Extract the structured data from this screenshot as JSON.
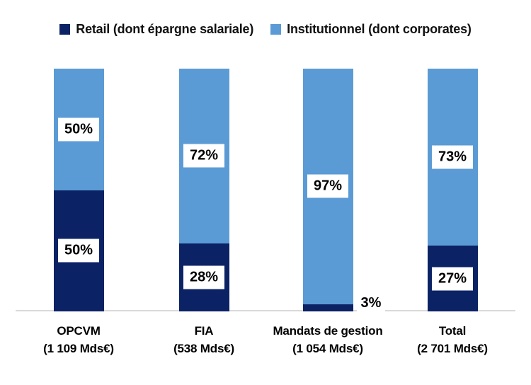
{
  "chart_data": {
    "type": "bar",
    "subtype": "stacked-100",
    "title": "",
    "categories": [
      "OPCVM",
      "FIA",
      "Mandats de gestion",
      "Total"
    ],
    "category_amounts": [
      "(1 109 Mds€)",
      "(538 Mds€)",
      "(1 054 Mds€)",
      "(2 701 Mds€)"
    ],
    "series": [
      {
        "name": "Retail (dont épargne salariale)",
        "color": "#0b2265",
        "values": [
          50,
          28,
          3,
          27
        ]
      },
      {
        "name": "Institutionnel (dont corporates)",
        "color": "#5b9bd5",
        "values": [
          50,
          72,
          97,
          73
        ]
      }
    ],
    "value_label_format": "percent",
    "value_labels": {
      "retail": [
        "50%",
        "28%",
        "3%",
        "27%"
      ],
      "institutionnel": [
        "50%",
        "72%",
        "97%",
        "73%"
      ]
    },
    "ylim": [
      0,
      100
    ],
    "grid": false,
    "legend_position": "top",
    "colors": {
      "retail": "#0b2265",
      "institutionnel": "#5b9bd5",
      "axis_line": "#d9d9d9",
      "label_box_bg": "#ffffff",
      "label_text": "#000000"
    }
  },
  "legend": {
    "items": [
      {
        "label": "Retail (dont épargne salariale)",
        "color": "#0b2265"
      },
      {
        "label": "Institutionnel (dont corporates)",
        "color": "#5b9bd5"
      }
    ]
  }
}
